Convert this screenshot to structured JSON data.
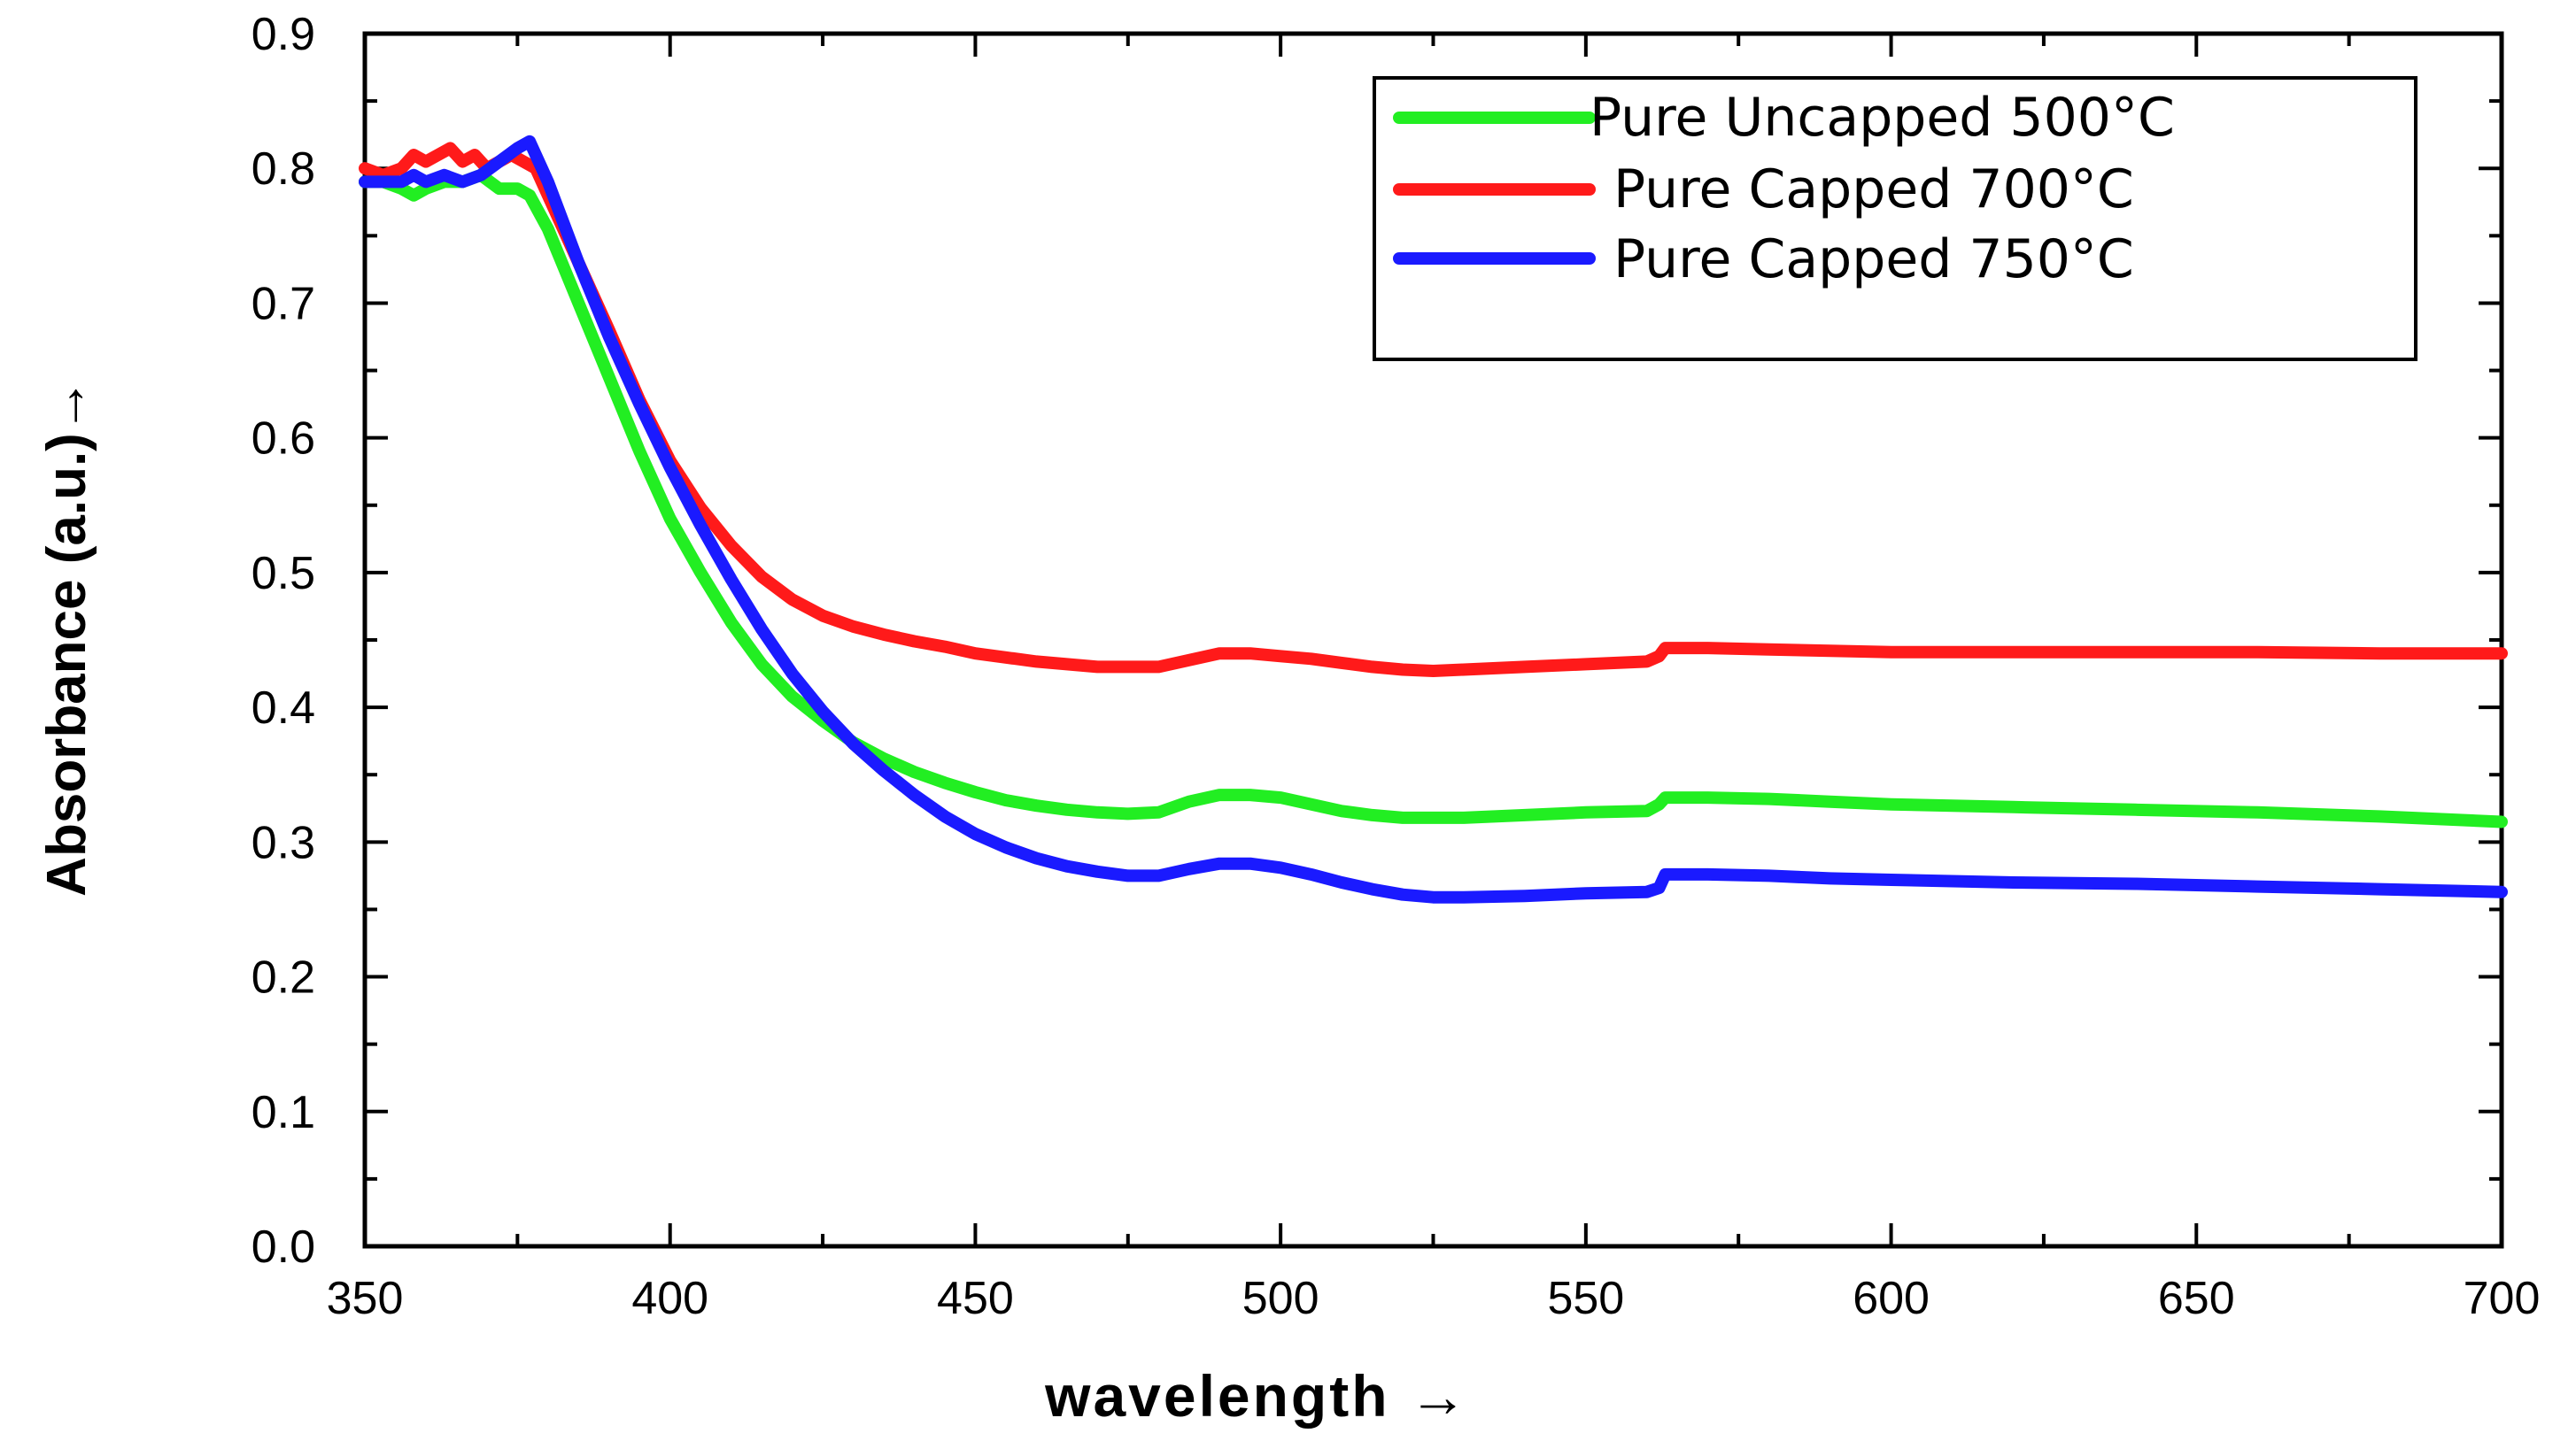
{
  "chart_data": {
    "type": "line",
    "title": "",
    "xlabel": "wavelength →",
    "ylabel": "Absorbance (a.u.)→",
    "xlim": [
      350,
      700
    ],
    "ylim": [
      0.0,
      0.9
    ],
    "x_ticks": [
      350,
      400,
      450,
      500,
      550,
      600,
      650,
      700
    ],
    "x_tick_labels": [
      "350",
      "400",
      "450",
      "500",
      "550",
      "600",
      "650",
      "700"
    ],
    "y_ticks": [
      0.0,
      0.1,
      0.2,
      0.3,
      0.4,
      0.5,
      0.6,
      0.7,
      0.8,
      0.9
    ],
    "y_tick_labels": [
      "0.0",
      "0.1",
      "0.2",
      "0.3",
      "0.4",
      "0.5",
      "0.6",
      "0.7",
      "0.8",
      "0.9"
    ],
    "grid": false,
    "legend_position": "top-right",
    "series": [
      {
        "name": "Pure Uncapped 500°C",
        "color": "#22ee22",
        "x": [
          350,
          353,
          356,
          358,
          360,
          363,
          366,
          369,
          372,
          375,
          377,
          380,
          385,
          390,
          395,
          400,
          405,
          410,
          415,
          420,
          425,
          430,
          435,
          440,
          445,
          450,
          455,
          460,
          465,
          470,
          475,
          480,
          485,
          490,
          495,
          500,
          505,
          510,
          515,
          520,
          525,
          530,
          540,
          550,
          560,
          562,
          563,
          570,
          580,
          590,
          600,
          620,
          640,
          660,
          680,
          700
        ],
        "y": [
          0.79,
          0.79,
          0.785,
          0.78,
          0.785,
          0.79,
          0.79,
          0.795,
          0.785,
          0.785,
          0.78,
          0.755,
          0.7,
          0.645,
          0.59,
          0.54,
          0.5,
          0.463,
          0.432,
          0.408,
          0.39,
          0.374,
          0.362,
          0.352,
          0.344,
          0.337,
          0.331,
          0.327,
          0.324,
          0.322,
          0.321,
          0.322,
          0.33,
          0.335,
          0.335,
          0.333,
          0.328,
          0.323,
          0.32,
          0.318,
          0.318,
          0.318,
          0.32,
          0.322,
          0.323,
          0.328,
          0.333,
          0.333,
          0.332,
          0.33,
          0.328,
          0.326,
          0.324,
          0.322,
          0.319,
          0.315
        ]
      },
      {
        "name": "Pure Capped 700°C",
        "color": "#ff1a1a",
        "x": [
          350,
          353,
          356,
          358,
          360,
          362,
          364,
          366,
          368,
          370,
          372,
          374,
          376,
          378,
          380,
          385,
          390,
          395,
          400,
          405,
          410,
          415,
          420,
          425,
          430,
          435,
          440,
          445,
          450,
          455,
          460,
          465,
          470,
          475,
          480,
          485,
          490,
          495,
          500,
          505,
          510,
          515,
          520,
          525,
          530,
          540,
          550,
          560,
          562,
          563,
          570,
          580,
          590,
          600,
          620,
          640,
          660,
          680,
          700
        ],
        "y": [
          0.8,
          0.795,
          0.8,
          0.81,
          0.805,
          0.81,
          0.815,
          0.805,
          0.81,
          0.8,
          0.805,
          0.81,
          0.805,
          0.8,
          0.78,
          0.73,
          0.68,
          0.628,
          0.583,
          0.548,
          0.52,
          0.497,
          0.48,
          0.468,
          0.46,
          0.454,
          0.449,
          0.445,
          0.44,
          0.437,
          0.434,
          0.432,
          0.43,
          0.43,
          0.43,
          0.435,
          0.44,
          0.44,
          0.438,
          0.436,
          0.433,
          0.43,
          0.428,
          0.427,
          0.428,
          0.43,
          0.432,
          0.434,
          0.438,
          0.444,
          0.444,
          0.443,
          0.442,
          0.441,
          0.441,
          0.441,
          0.441,
          0.44,
          0.44
        ]
      },
      {
        "name": "Pure Capped 750°C",
        "color": "#1a1aff",
        "x": [
          350,
          353,
          356,
          358,
          360,
          363,
          366,
          369,
          372,
          375,
          377,
          380,
          385,
          390,
          395,
          400,
          405,
          410,
          415,
          420,
          425,
          430,
          435,
          440,
          445,
          450,
          455,
          460,
          465,
          470,
          475,
          480,
          485,
          490,
          495,
          500,
          505,
          510,
          515,
          520,
          525,
          530,
          540,
          550,
          560,
          562,
          563,
          570,
          580,
          590,
          600,
          620,
          640,
          660,
          680,
          700
        ],
        "y": [
          0.79,
          0.79,
          0.79,
          0.795,
          0.79,
          0.795,
          0.79,
          0.795,
          0.805,
          0.815,
          0.82,
          0.79,
          0.73,
          0.675,
          0.625,
          0.578,
          0.535,
          0.495,
          0.458,
          0.425,
          0.397,
          0.373,
          0.353,
          0.335,
          0.319,
          0.306,
          0.296,
          0.288,
          0.282,
          0.278,
          0.275,
          0.275,
          0.28,
          0.284,
          0.284,
          0.281,
          0.276,
          0.27,
          0.265,
          0.261,
          0.259,
          0.259,
          0.26,
          0.262,
          0.263,
          0.266,
          0.276,
          0.276,
          0.275,
          0.273,
          0.272,
          0.27,
          0.269,
          0.267,
          0.265,
          0.263
        ]
      }
    ]
  }
}
